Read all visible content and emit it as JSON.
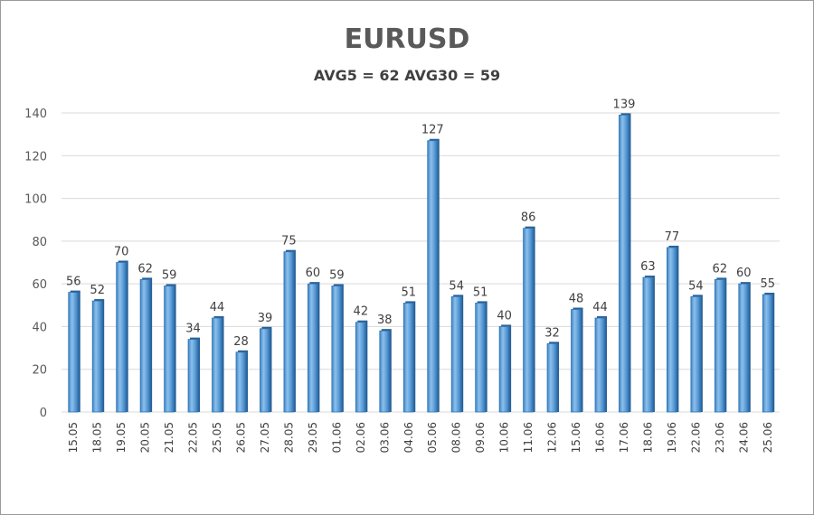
{
  "chart_data": {
    "type": "bar",
    "title": "EURUSD",
    "subtitle": "AVG5 = 62 AVG30 = 59",
    "xlabel": "",
    "ylabel": "",
    "ylim": [
      0,
      140
    ],
    "yticks": [
      0,
      20,
      40,
      60,
      80,
      100,
      120,
      140
    ],
    "grid": true,
    "data_labels": true,
    "bar_color": "#5b9bd5",
    "bar_edge_color": "#2e75b6",
    "categories": [
      "15.05",
      "18.05",
      "19.05",
      "20.05",
      "21.05",
      "22.05",
      "25.05",
      "26.05",
      "27.05",
      "28.05",
      "29.05",
      "01.06",
      "02.06",
      "03.06",
      "04.06",
      "05.06",
      "08.06",
      "09.06",
      "10.06",
      "11.06",
      "12.06",
      "15.06",
      "16.06",
      "17.06",
      "18.06",
      "19.06",
      "22.06",
      "23.06",
      "24.06",
      "25.06"
    ],
    "values": [
      56,
      52,
      70,
      62,
      59,
      34,
      44,
      28,
      39,
      75,
      60,
      59,
      42,
      38,
      51,
      127,
      54,
      51,
      40,
      86,
      32,
      48,
      44,
      139,
      63,
      77,
      54,
      62,
      60,
      55
    ]
  }
}
